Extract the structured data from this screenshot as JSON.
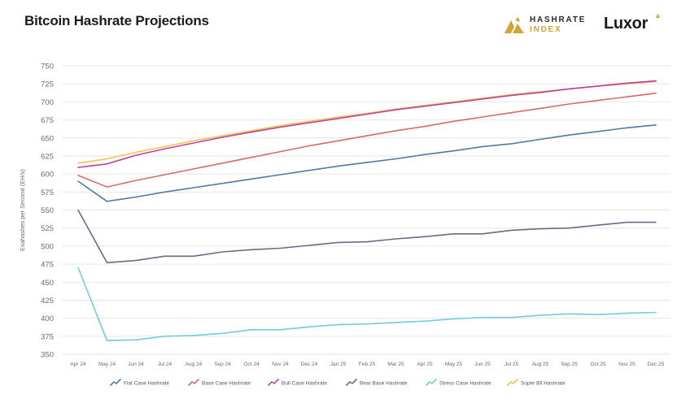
{
  "header": {
    "title": "Bitcoin Hashrate Projections",
    "logo_hashrate_line1": "HASHRATE",
    "logo_hashrate_line2": "INDEX",
    "logo_luxor": "Luxor"
  },
  "colors": {
    "flat": "#4f7aa7",
    "base": "#d46a6a",
    "bull": "#c2409a",
    "bear": "#6c6a86",
    "stress": "#6fcde0",
    "super": "#ecc54f",
    "grid": "#e6e6e6",
    "gold": "#d4a437"
  },
  "chart_data": {
    "type": "line",
    "title": "Bitcoin Hashrate Projections",
    "xlabel": "",
    "ylabel": "Exahashes per Second (EH/s)",
    "ylim": [
      350,
      750
    ],
    "yticks": [
      350,
      375,
      400,
      425,
      450,
      475,
      500,
      525,
      550,
      575,
      600,
      625,
      650,
      675,
      700,
      725,
      750
    ],
    "grid": true,
    "legend": "bottom",
    "categories": [
      "Apr 24",
      "May 24",
      "Jun 24",
      "Jul 24",
      "Aug 24",
      "Sep 24",
      "Oct 24",
      "Nov 24",
      "Dec 24",
      "Jan 25",
      "Feb 25",
      "Mar 25",
      "Apr 25",
      "May 25",
      "Jun 25",
      "Jul 25",
      "Aug 25",
      "Sep 25",
      "Oct 25",
      "Nov 25",
      "Dec 25"
    ],
    "series": [
      {
        "name": "Flat Case Hashrate",
        "key": "flat",
        "values": [
          590,
          562,
          568,
          575,
          581,
          587,
          593,
          599,
          605,
          611,
          616,
          621,
          627,
          632,
          638,
          642,
          648,
          654,
          659,
          664,
          668
        ]
      },
      {
        "name": "Base Case Hashrate",
        "key": "base",
        "values": [
          598,
          582,
          591,
          599,
          607,
          615,
          623,
          631,
          639,
          646,
          653,
          660,
          666,
          673,
          679,
          685,
          691,
          697,
          702,
          707,
          712
        ]
      },
      {
        "name": "Bull Case Hashrate",
        "key": "bull",
        "values": [
          609,
          614,
          626,
          635,
          643,
          651,
          658,
          665,
          671,
          677,
          683,
          689,
          694,
          699,
          704,
          709,
          713,
          718,
          722,
          726,
          729
        ]
      },
      {
        "name": "Bear Base Hashrate",
        "key": "bear",
        "values": [
          550,
          477,
          480,
          486,
          486,
          492,
          495,
          497,
          501,
          505,
          506,
          510,
          513,
          517,
          517,
          522,
          524,
          525,
          529,
          533,
          533
        ]
      },
      {
        "name": "Stress Case Hashrate",
        "key": "stress",
        "values": [
          470,
          369,
          370,
          375,
          376,
          379,
          384,
          384,
          388,
          391,
          392,
          394,
          396,
          399,
          401,
          401,
          404,
          406,
          405,
          407,
          408
        ]
      },
      {
        "name": "Super Bll Hashrate",
        "key": "super",
        "values": [
          615,
          621,
          630,
          638,
          646,
          653,
          660,
          667,
          673,
          679,
          684,
          690,
          695,
          700,
          705,
          710,
          714,
          718,
          722,
          725,
          728
        ]
      }
    ]
  }
}
